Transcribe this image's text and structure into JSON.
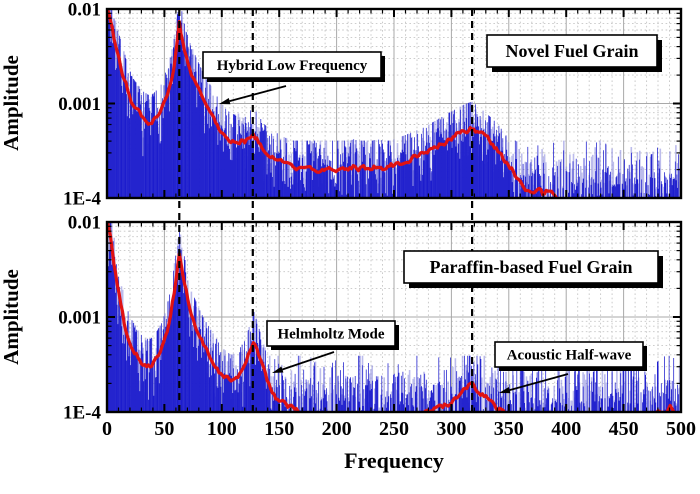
{
  "figure": {
    "xlabel": "Frequency",
    "ylabel": "Amplitude",
    "x_ticks": [
      0,
      50,
      100,
      150,
      200,
      250,
      300,
      350,
      400,
      450,
      500
    ],
    "x_minor_step": 10,
    "x_major_step": 50,
    "xlim": [
      0,
      500
    ],
    "ylim": [
      0.0001,
      0.01
    ],
    "yscale": "log",
    "y_ticks": [
      {
        "label": "0.01",
        "value": 0.01
      },
      {
        "label": "0.001",
        "value": 0.001
      },
      {
        "label": "1E-4",
        "value": 0.0001
      }
    ],
    "dashed_lines_x": [
      63,
      127,
      318
    ],
    "grid": "major-solid-minor-dotted",
    "colors": {
      "raw_spectrum": "#1c1ccd",
      "raw_spectrum_halo": "#8f8fe0",
      "smoothed_spectrum": "#e01212",
      "grid_major": "#a9a9a9",
      "grid_minor": "#c6c6c6",
      "dashed_line": "#000000",
      "axis": "#000000"
    }
  },
  "chart_data": [
    {
      "type": "line",
      "panel": "top",
      "title": "Novel Fuel Grain",
      "yscale": "log",
      "xlim": [
        0,
        500
      ],
      "ylim": [
        0.0001,
        0.01
      ],
      "series_names": [
        "raw FFT spectrum (blue)",
        "smoothed spectrum (red)"
      ],
      "noise_floor": 0.000135,
      "seed": 7,
      "annotations": [
        {
          "label": "Hybrid Low Frequency",
          "points_to_hz": 63
        }
      ],
      "envelope": [
        [
          0,
          0.0105
        ],
        [
          3,
          0.008
        ],
        [
          6,
          0.005
        ],
        [
          10,
          0.003
        ],
        [
          14,
          0.002
        ],
        [
          18,
          0.0014
        ],
        [
          22,
          0.001
        ],
        [
          27,
          0.00082
        ],
        [
          32,
          0.0007
        ],
        [
          36,
          0.00065
        ],
        [
          40,
          0.00066
        ],
        [
          44,
          0.00075
        ],
        [
          48,
          0.0009
        ],
        [
          52,
          0.0012
        ],
        [
          55,
          0.0016
        ],
        [
          58,
          0.0024
        ],
        [
          60,
          0.0036
        ],
        [
          62,
          0.0055
        ],
        [
          63,
          0.007
        ],
        [
          65,
          0.0052
        ],
        [
          67,
          0.0038
        ],
        [
          70,
          0.0028
        ],
        [
          73,
          0.0022
        ],
        [
          76,
          0.0018
        ],
        [
          80,
          0.0014
        ],
        [
          84,
          0.0011
        ],
        [
          88,
          0.0009
        ],
        [
          92,
          0.00075
        ],
        [
          96,
          0.00062
        ],
        [
          100,
          0.00052
        ],
        [
          104,
          0.00046
        ],
        [
          108,
          0.00041
        ],
        [
          112,
          0.0004
        ],
        [
          116,
          0.00042
        ],
        [
          120,
          0.0004
        ],
        [
          124,
          0.00043
        ],
        [
          127,
          0.00047
        ],
        [
          130,
          0.00043
        ],
        [
          134,
          0.00036
        ],
        [
          138,
          0.00031
        ],
        [
          142,
          0.00028
        ],
        [
          147,
          0.00026
        ],
        [
          152,
          0.00024
        ],
        [
          158,
          0.00022
        ],
        [
          165,
          0.00021
        ],
        [
          172,
          0.00019
        ],
        [
          180,
          0.00019
        ],
        [
          188,
          0.00021
        ],
        [
          196,
          0.00019
        ],
        [
          205,
          0.0002
        ],
        [
          215,
          0.00022
        ],
        [
          225,
          0.0002
        ],
        [
          235,
          0.00022
        ],
        [
          245,
          0.00021
        ],
        [
          255,
          0.00023
        ],
        [
          265,
          0.00026
        ],
        [
          275,
          0.00029
        ],
        [
          285,
          0.00034
        ],
        [
          295,
          0.0004
        ],
        [
          305,
          0.00047
        ],
        [
          312,
          0.00052
        ],
        [
          318,
          0.00055
        ],
        [
          324,
          0.00048
        ],
        [
          330,
          0.00042
        ],
        [
          336,
          0.00036
        ],
        [
          342,
          0.0003
        ],
        [
          348,
          0.00024
        ],
        [
          354,
          0.00019
        ],
        [
          360,
          0.00015
        ],
        [
          365,
          0.00013
        ],
        [
          370,
          0.00012
        ],
        [
          375,
          0.00013
        ],
        [
          380,
          0.00011
        ],
        [
          385,
          0.00012
        ],
        [
          390,
          0.0001
        ],
        [
          396,
          8e-05
        ],
        [
          405,
          7e-05
        ],
        [
          500,
          7e-05
        ]
      ]
    },
    {
      "type": "line",
      "panel": "bottom",
      "title": "Paraffin-based Fuel Grain",
      "yscale": "log",
      "xlim": [
        0,
        500
      ],
      "ylim": [
        0.0001,
        0.01
      ],
      "series_names": [
        "raw FFT spectrum (blue)",
        "smoothed spectrum (red)"
      ],
      "noise_floor": 0.00013,
      "seed": 13,
      "annotations": [
        {
          "label": "Helmholtz Mode",
          "points_to_hz": 127
        },
        {
          "label": "Acoustic Half-wave",
          "points_to_hz": 318
        }
      ],
      "envelope": [
        [
          0,
          0.0105
        ],
        [
          3,
          0.007
        ],
        [
          6,
          0.0038
        ],
        [
          9,
          0.0022
        ],
        [
          12,
          0.0013
        ],
        [
          15,
          0.00085
        ],
        [
          18,
          0.00062
        ],
        [
          22,
          0.00048
        ],
        [
          26,
          0.0004
        ],
        [
          30,
          0.00034
        ],
        [
          34,
          0.00031
        ],
        [
          38,
          0.00031
        ],
        [
          42,
          0.00035
        ],
        [
          46,
          0.00042
        ],
        [
          50,
          0.00055
        ],
        [
          54,
          0.00085
        ],
        [
          57,
          0.0014
        ],
        [
          60,
          0.0024
        ],
        [
          62,
          0.0036
        ],
        [
          63,
          0.0045
        ],
        [
          65,
          0.0034
        ],
        [
          67,
          0.0024
        ],
        [
          70,
          0.0016
        ],
        [
          73,
          0.0011
        ],
        [
          76,
          0.00085
        ],
        [
          80,
          0.00065
        ],
        [
          84,
          0.00052
        ],
        [
          88,
          0.00043
        ],
        [
          92,
          0.00036
        ],
        [
          96,
          0.0003
        ],
        [
          100,
          0.00025
        ],
        [
          104,
          0.00023
        ],
        [
          108,
          0.00021
        ],
        [
          112,
          0.00022
        ],
        [
          116,
          0.00025
        ],
        [
          120,
          0.0003
        ],
        [
          123,
          0.00038
        ],
        [
          126,
          0.0005
        ],
        [
          128,
          0.0006
        ],
        [
          130,
          0.0005
        ],
        [
          133,
          0.00038
        ],
        [
          136,
          0.00028
        ],
        [
          140,
          0.00021
        ],
        [
          144,
          0.00017
        ],
        [
          148,
          0.00014
        ],
        [
          153,
          0.000125
        ],
        [
          158,
          0.000115
        ],
        [
          163,
          0.000105
        ],
        [
          168,
          9.5e-05
        ],
        [
          175,
          8.8e-05
        ],
        [
          185,
          8.2e-05
        ],
        [
          200,
          8e-05
        ],
        [
          215,
          8.2e-05
        ],
        [
          230,
          8e-05
        ],
        [
          245,
          8.2e-05
        ],
        [
          260,
          8.5e-05
        ],
        [
          270,
          9e-05
        ],
        [
          280,
          9.8e-05
        ],
        [
          288,
          0.000108
        ],
        [
          295,
          0.000118
        ],
        [
          302,
          0.00013
        ],
        [
          308,
          0.00015
        ],
        [
          313,
          0.000175
        ],
        [
          317,
          0.000215
        ],
        [
          320,
          0.000185
        ],
        [
          324,
          0.00016
        ],
        [
          328,
          0.00015
        ],
        [
          332,
          0.00014
        ],
        [
          336,
          0.000125
        ],
        [
          340,
          0.00011
        ],
        [
          345,
          0.0001
        ],
        [
          350,
          9e-05
        ],
        [
          360,
          8e-05
        ],
        [
          400,
          7.8e-05
        ],
        [
          470,
          8e-05
        ],
        [
          476,
          9.5e-05
        ],
        [
          481,
          0.000108
        ],
        [
          486,
          9.8e-05
        ],
        [
          491,
          0.000112
        ],
        [
          496,
          9e-05
        ],
        [
          500,
          8e-05
        ]
      ]
    }
  ]
}
